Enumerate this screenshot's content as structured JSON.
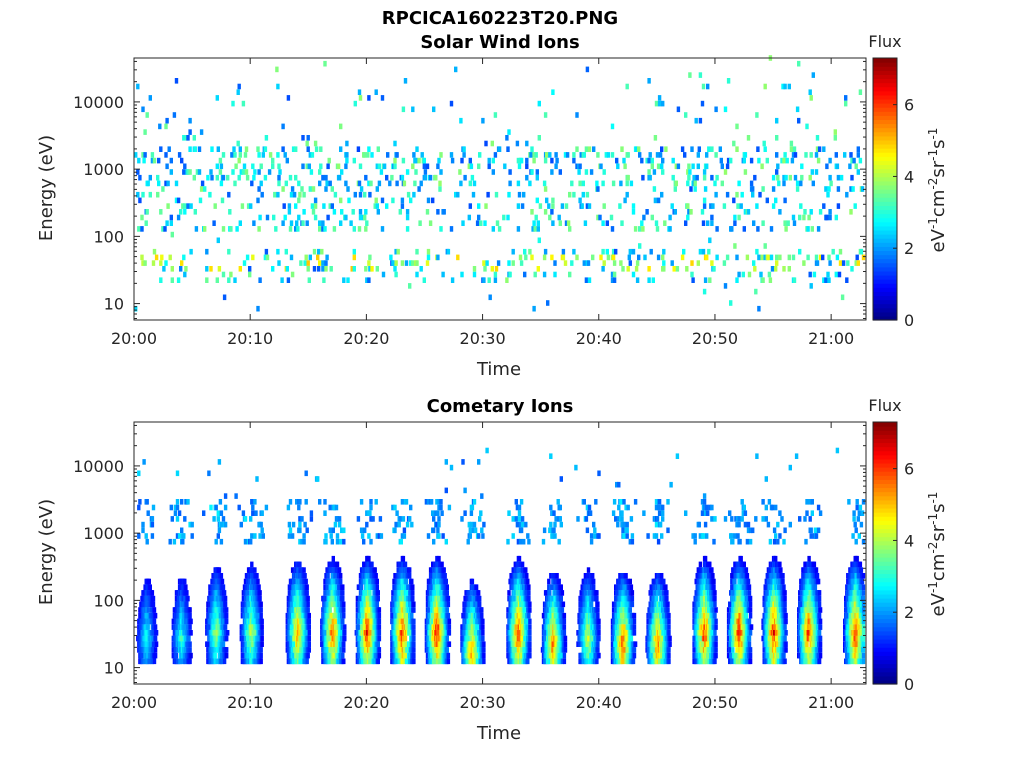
{
  "figure": {
    "title": "RPCICA160223T20.PNG"
  },
  "chart_data": [
    {
      "type": "heatmap",
      "title": "Solar Wind Ions",
      "xlabel": "Time",
      "ylabel": "Energy (eV)",
      "xlim": [
        "20:00",
        "21:03"
      ],
      "ylim": [
        5.7,
        45000
      ],
      "yscale": "log",
      "xticks": [
        "20:00",
        "20:10",
        "20:20",
        "20:30",
        "20:40",
        "20:50",
        "21:00"
      ],
      "yticks": [
        "10",
        "100",
        "1000",
        "10000"
      ],
      "colorbar": {
        "title": "Flux",
        "label": "eV-1cm-2sr-1s-1",
        "range": [
          0,
          7.3
        ],
        "ticks": [
          "0",
          "2",
          "4",
          "6"
        ],
        "colormap": "jet"
      },
      "bands": [
        {
          "energy": 1000,
          "flux": 3.2,
          "note": "sporadic pixels"
        },
        {
          "energy": 250,
          "flux": 2.8
        },
        {
          "energy": 35,
          "flux": 4.2
        }
      ],
      "grid": false
    },
    {
      "type": "heatmap",
      "title": "Cometary Ions",
      "xlabel": "Time",
      "ylabel": "Energy (eV)",
      "xlim": [
        "20:00",
        "21:03"
      ],
      "ylim": [
        5.7,
        45000
      ],
      "yscale": "log",
      "xticks": [
        "20:00",
        "20:10",
        "20:20",
        "20:30",
        "20:40",
        "20:50",
        "21:00"
      ],
      "yticks": [
        "10",
        "100",
        "1000",
        "10000"
      ],
      "colorbar": {
        "title": "Flux",
        "label": "eV-1cm-2sr-1s-1",
        "range": [
          0,
          7.3
        ],
        "ticks": [
          "0",
          "2",
          "4",
          "6"
        ],
        "colormap": "jet"
      },
      "bursts": [
        {
          "time": "20:01",
          "peak_energy": 25,
          "peak_flux": 3.0
        },
        {
          "time": "20:04",
          "peak_energy": 25,
          "peak_flux": 3.2
        },
        {
          "time": "20:07",
          "peak_energy": 30,
          "peak_flux": 4.0
        },
        {
          "time": "20:10",
          "peak_energy": 30,
          "peak_flux": 4.3
        },
        {
          "time": "20:14",
          "peak_energy": 30,
          "peak_flux": 5.5
        },
        {
          "time": "20:17",
          "peak_energy": 30,
          "peak_flux": 6.0
        },
        {
          "time": "20:20",
          "peak_energy": 30,
          "peak_flux": 6.5
        },
        {
          "time": "20:23",
          "peak_energy": 30,
          "peak_flux": 6.5
        },
        {
          "time": "20:26",
          "peak_energy": 30,
          "peak_flux": 6.6
        },
        {
          "time": "20:29",
          "peak_energy": 15,
          "peak_flux": 5.6
        },
        {
          "time": "20:33",
          "peak_energy": 30,
          "peak_flux": 6.3
        },
        {
          "time": "20:36",
          "peak_energy": 20,
          "peak_flux": 5.8
        },
        {
          "time": "20:39",
          "peak_energy": 25,
          "peak_flux": 4.4
        },
        {
          "time": "20:42",
          "peak_energy": 20,
          "peak_flux": 6.2
        },
        {
          "time": "20:45",
          "peak_energy": 20,
          "peak_flux": 5.8
        },
        {
          "time": "20:49",
          "peak_energy": 30,
          "peak_flux": 6.3
        },
        {
          "time": "20:52",
          "peak_energy": 30,
          "peak_flux": 6.5
        },
        {
          "time": "20:55",
          "peak_energy": 30,
          "peak_flux": 6.5
        },
        {
          "time": "20:58",
          "peak_energy": 30,
          "peak_flux": 6.3
        },
        {
          "time": "21:02",
          "peak_energy": 30,
          "peak_flux": 6.4
        }
      ],
      "grid": false
    }
  ]
}
